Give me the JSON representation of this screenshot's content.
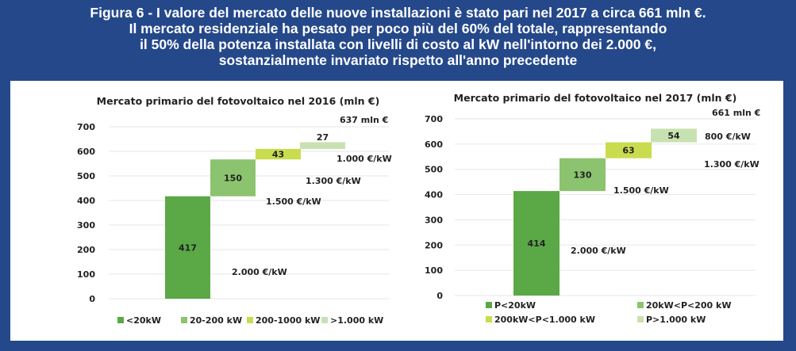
{
  "figure": {
    "title_lines": [
      "Figura 6 -  I valore del mercato delle nuove installazioni è stato pari nel 2017 a circa 661 mln €.",
      "Il mercato residenziale ha pesato per poco più del 60% del totale, rappresentando",
      "il 50% della potenza installata con livelli di costo al kW nell'intorno dei 2.000 €,",
      "sostanzialmente invariato rispetto all'anno precedente"
    ]
  },
  "colors": {
    "background": "#24488a",
    "series": [
      "#5aa846",
      "#8cc36e",
      "#c9dc4e",
      "#c7e2b0"
    ]
  },
  "chart_data": [
    {
      "type": "bar",
      "subtype": "waterfall",
      "title": "Mercato primario del fotovoltaico nel 2016 (mln €)",
      "categories": [
        "<20kW",
        "20-200  kW",
        "200-1000  kW",
        ">1.000  kW"
      ],
      "values": [
        417,
        150,
        43,
        27
      ],
      "cost_labels": [
        "2.000 €/kW",
        "1.500 €/kW",
        "1.300 €/kW",
        "1.000 €/kW"
      ],
      "total_label": "637 mln €",
      "yticks": [
        "0",
        "100",
        "200",
        "300",
        "400",
        "500",
        "600",
        "700"
      ],
      "ylim": [
        0,
        700
      ],
      "grid": true,
      "legend": "bottom"
    },
    {
      "type": "bar",
      "subtype": "waterfall",
      "title": "Mercato primario del fotovoltaico nel 2017 (mln €)",
      "categories": [
        "P<20kW",
        "20kW<P<200  kW",
        "200kW<P<1.000  kW",
        "P>1.000  kW"
      ],
      "values": [
        414,
        130,
        63,
        54
      ],
      "cost_labels": [
        "2.000 €/kW",
        "1.500 €/kW",
        "1.300 €/kW",
        "800 €/kW"
      ],
      "total_label": "661 mln €",
      "yticks": [
        "0",
        "100",
        "200",
        "300",
        "400",
        "500",
        "600",
        "700"
      ],
      "ylim": [
        0,
        700
      ],
      "grid": true,
      "legend": "bottom"
    }
  ]
}
